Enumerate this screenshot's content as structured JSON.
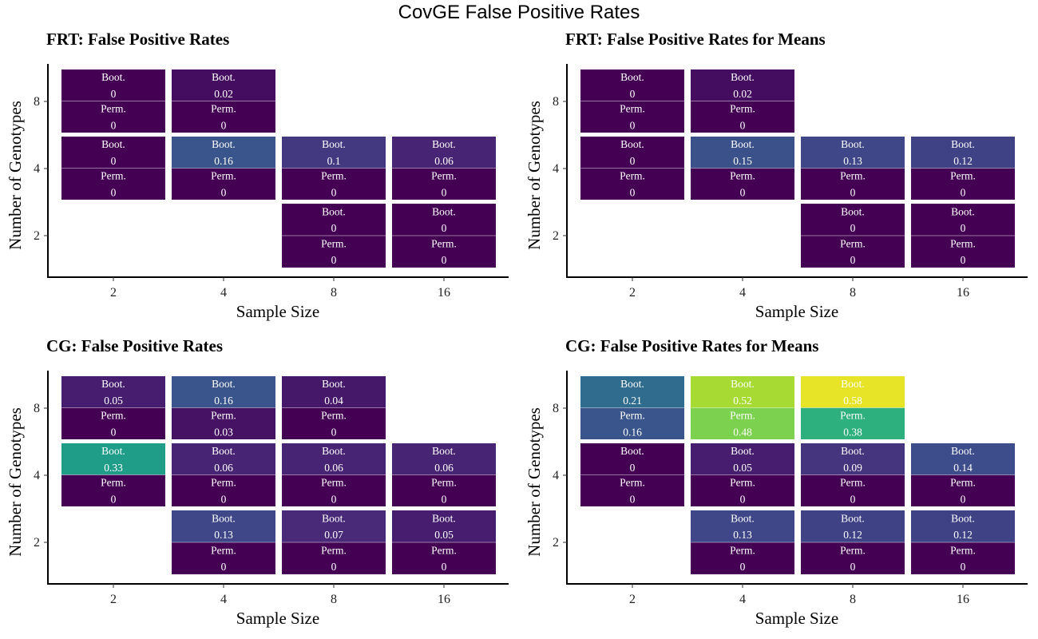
{
  "title": "CovGE False Positive Rates",
  "axis": {
    "xlabel": "Sample Size",
    "ylabel": "Number of Genotypes",
    "x_ticks": [
      "2",
      "4",
      "8",
      "16"
    ],
    "y_ticks": [
      "2",
      "4",
      "8"
    ]
  },
  "chart_data": [
    {
      "type": "heatmap",
      "title": "FRT: False Positive Rates",
      "xlabel": "Sample Size",
      "ylabel": "Number of Genotypes",
      "x": [
        2,
        4,
        8,
        16
      ],
      "y": [
        2,
        4,
        8
      ],
      "cells": [
        {
          "sample_size": 2,
          "genotypes": 8,
          "boot": "0",
          "perm": "0"
        },
        {
          "sample_size": 4,
          "genotypes": 8,
          "boot": "0.02",
          "perm": "0"
        },
        {
          "sample_size": 2,
          "genotypes": 4,
          "boot": "0",
          "perm": "0"
        },
        {
          "sample_size": 4,
          "genotypes": 4,
          "boot": "0.16",
          "perm": "0"
        },
        {
          "sample_size": 8,
          "genotypes": 4,
          "boot": "0.1",
          "perm": "0"
        },
        {
          "sample_size": 16,
          "genotypes": 4,
          "boot": "0.06",
          "perm": "0"
        },
        {
          "sample_size": 8,
          "genotypes": 2,
          "boot": "0",
          "perm": "0"
        },
        {
          "sample_size": 16,
          "genotypes": 2,
          "boot": "0",
          "perm": "0"
        }
      ]
    },
    {
      "type": "heatmap",
      "title": "FRT: False Positive Rates for Means",
      "xlabel": "Sample Size",
      "ylabel": "Number of Genotypes",
      "x": [
        2,
        4,
        8,
        16
      ],
      "y": [
        2,
        4,
        8
      ],
      "cells": [
        {
          "sample_size": 2,
          "genotypes": 8,
          "boot": "0",
          "perm": "0"
        },
        {
          "sample_size": 4,
          "genotypes": 8,
          "boot": "0.02",
          "perm": "0"
        },
        {
          "sample_size": 2,
          "genotypes": 4,
          "boot": "0",
          "perm": "0"
        },
        {
          "sample_size": 4,
          "genotypes": 4,
          "boot": "0.15",
          "perm": "0"
        },
        {
          "sample_size": 8,
          "genotypes": 4,
          "boot": "0.13",
          "perm": "0"
        },
        {
          "sample_size": 16,
          "genotypes": 4,
          "boot": "0.12",
          "perm": "0"
        },
        {
          "sample_size": 8,
          "genotypes": 2,
          "boot": "0",
          "perm": "0"
        },
        {
          "sample_size": 16,
          "genotypes": 2,
          "boot": "0",
          "perm": "0"
        }
      ]
    },
    {
      "type": "heatmap",
      "title": "CG: False Positive Rates",
      "xlabel": "Sample Size",
      "ylabel": "Number of Genotypes",
      "x": [
        2,
        4,
        8,
        16
      ],
      "y": [
        2,
        4,
        8
      ],
      "cells": [
        {
          "sample_size": 2,
          "genotypes": 8,
          "boot": "0.05",
          "perm": "0"
        },
        {
          "sample_size": 4,
          "genotypes": 8,
          "boot": "0.16",
          "perm": "0.03"
        },
        {
          "sample_size": 8,
          "genotypes": 8,
          "boot": "0.04",
          "perm": "0"
        },
        {
          "sample_size": 2,
          "genotypes": 4,
          "boot": "0.33",
          "perm": "0"
        },
        {
          "sample_size": 4,
          "genotypes": 4,
          "boot": "0.06",
          "perm": "0"
        },
        {
          "sample_size": 8,
          "genotypes": 4,
          "boot": "0.06",
          "perm": "0"
        },
        {
          "sample_size": 16,
          "genotypes": 4,
          "boot": "0.06",
          "perm": "0"
        },
        {
          "sample_size": 4,
          "genotypes": 2,
          "boot": "0.13",
          "perm": "0"
        },
        {
          "sample_size": 8,
          "genotypes": 2,
          "boot": "0.07",
          "perm": "0"
        },
        {
          "sample_size": 16,
          "genotypes": 2,
          "boot": "0.05",
          "perm": "0"
        }
      ]
    },
    {
      "type": "heatmap",
      "title": "CG: False Positive Rates for Means",
      "xlabel": "Sample Size",
      "ylabel": "Number of Genotypes",
      "x": [
        2,
        4,
        8,
        16
      ],
      "y": [
        2,
        4,
        8
      ],
      "cells": [
        {
          "sample_size": 2,
          "genotypes": 8,
          "boot": "0.21",
          "perm": "0.16"
        },
        {
          "sample_size": 4,
          "genotypes": 8,
          "boot": "0.52",
          "perm": "0.48"
        },
        {
          "sample_size": 8,
          "genotypes": 8,
          "boot": "0.58",
          "perm": "0.38"
        },
        {
          "sample_size": 2,
          "genotypes": 4,
          "boot": "0",
          "perm": "0"
        },
        {
          "sample_size": 4,
          "genotypes": 4,
          "boot": "0.05",
          "perm": "0"
        },
        {
          "sample_size": 8,
          "genotypes": 4,
          "boot": "0.09",
          "perm": "0"
        },
        {
          "sample_size": 16,
          "genotypes": 4,
          "boot": "0.14",
          "perm": "0"
        },
        {
          "sample_size": 4,
          "genotypes": 2,
          "boot": "0.13",
          "perm": "0"
        },
        {
          "sample_size": 8,
          "genotypes": 2,
          "boot": "0.12",
          "perm": "0"
        },
        {
          "sample_size": 16,
          "genotypes": 2,
          "boot": "0.12",
          "perm": "0"
        }
      ]
    }
  ],
  "tile_labels": {
    "boot": "Boot.",
    "perm": "Perm."
  },
  "color_scale": {
    "name": "viridis",
    "stops": [
      "#440154",
      "#482878",
      "#3e4989",
      "#31688e",
      "#26828e",
      "#1f9e89",
      "#35b779",
      "#6ece58",
      "#b5de2b",
      "#fde725"
    ],
    "domain": [
      0,
      0.6
    ]
  }
}
